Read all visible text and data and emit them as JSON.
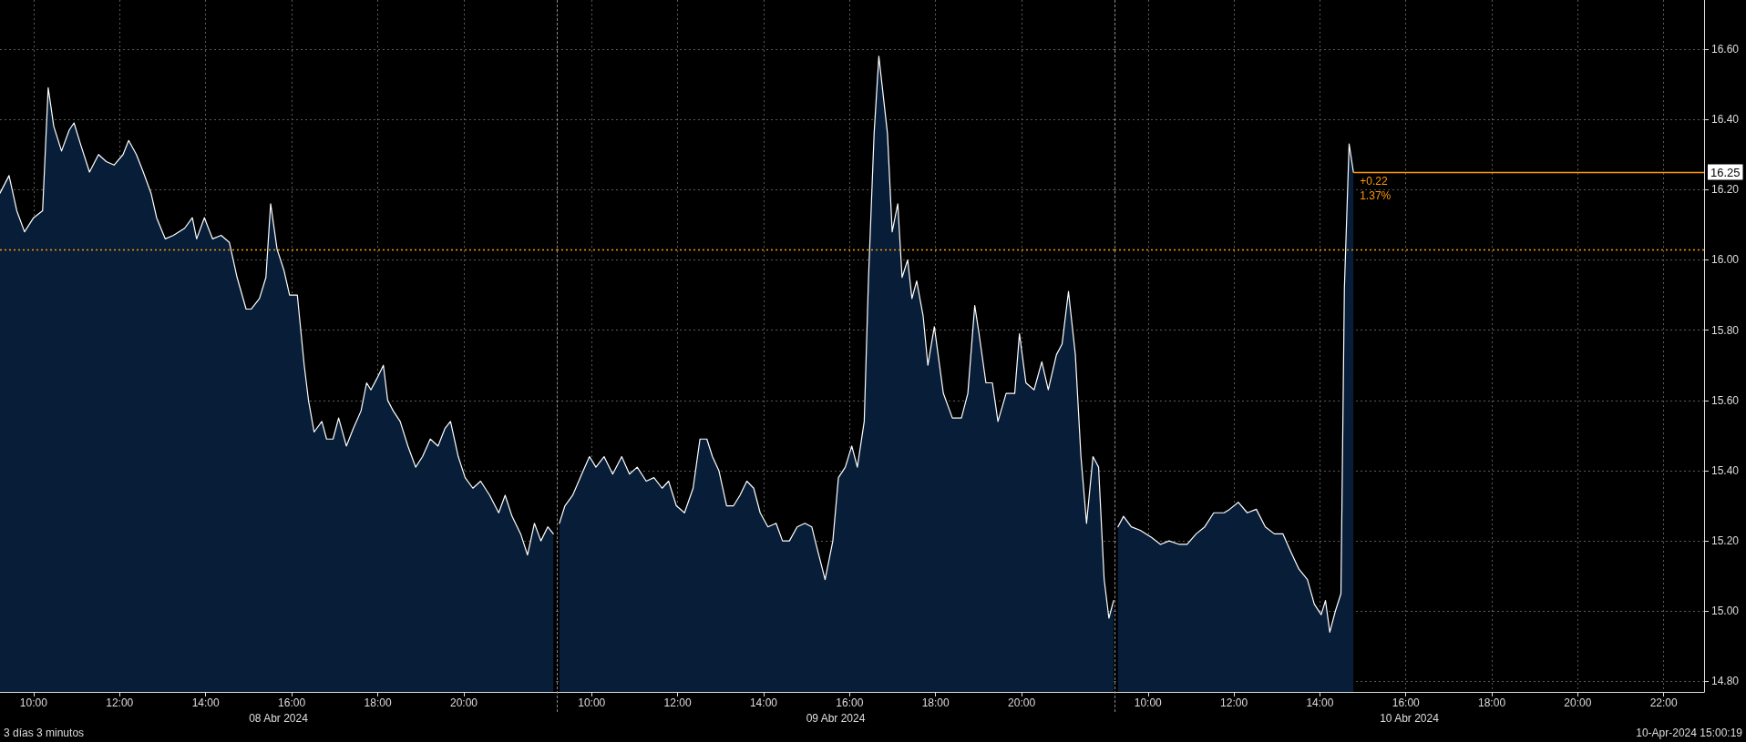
{
  "chart_data": [
    {
      "type": "area",
      "xlabel": "08 Abr 2024",
      "x": [
        9.22,
        9.43,
        9.61,
        9.79,
        10,
        10.21,
        10.34,
        10.47,
        10.65,
        10.83,
        10.94,
        11.09,
        11.3,
        11.51,
        11.69,
        11.87,
        12.08,
        12.21,
        12.39,
        12.55,
        12.73,
        12.86,
        13.06,
        13.25,
        13.51,
        13.69,
        13.79,
        13.97,
        14.16,
        14.36,
        14.55,
        14.73,
        14.94,
        15.06,
        15.25,
        15.4,
        15.51,
        15.66,
        15.82,
        15.95,
        16.13,
        16.29,
        16.39,
        16.52,
        16.7,
        16.81,
        16.96,
        17.09,
        17.27,
        17.43,
        17.61,
        17.74,
        17.84,
        17.97,
        18.13,
        18.23,
        18.36,
        18.52,
        18.7,
        18.88,
        19.04,
        19.22,
        19.4,
        19.56,
        19.69,
        19.87,
        20.03,
        20.21,
        20.39,
        20.6,
        20.81,
        20.96,
        21.12,
        21.32,
        21.48,
        21.64,
        21.79,
        21.95,
        22.08
      ],
      "series": [
        {
          "color": "#ffffff",
          "values": [
            16.19,
            16.24,
            16.14,
            16.08,
            16.12,
            16.14,
            16.49,
            16.38,
            16.31,
            16.37,
            16.39,
            16.33,
            16.25,
            16.3,
            16.28,
            16.27,
            16.3,
            16.34,
            16.3,
            16.25,
            16.19,
            16.12,
            16.06,
            16.07,
            16.09,
            16.12,
            16.06,
            16.12,
            16.06,
            16.07,
            16.05,
            15.95,
            15.86,
            15.86,
            15.89,
            15.95,
            16.16,
            16.03,
            15.97,
            15.9,
            15.9,
            15.7,
            15.6,
            15.51,
            15.54,
            15.49,
            15.49,
            15.55,
            15.47,
            15.52,
            15.57,
            15.65,
            15.63,
            15.66,
            15.7,
            15.6,
            15.57,
            15.54,
            15.47,
            15.41,
            15.44,
            15.49,
            15.47,
            15.52,
            15.54,
            15.44,
            15.38,
            15.35,
            15.37,
            15.33,
            15.28,
            15.33,
            15.27,
            15.22,
            15.16,
            15.25,
            15.2,
            15.24,
            15.22
          ]
        }
      ],
      "xlim": [
        9.22,
        22.16
      ],
      "xticks": [
        {
          "value": 10,
          "label": "10:00"
        },
        {
          "value": 12,
          "label": "12:00"
        },
        {
          "value": 14,
          "label": "14:00"
        },
        {
          "value": 16,
          "label": "16:00"
        },
        {
          "value": 18,
          "label": "18:00"
        },
        {
          "value": 20,
          "label": "20:00"
        }
      ],
      "ylim": [
        14.77,
        16.74
      ],
      "yticks": [
        14.8,
        15,
        15.2,
        15.4,
        15.6,
        15.8,
        16,
        16.2,
        16.4,
        16.6
      ],
      "tick_labels": "x",
      "ref_lines": [
        {
          "axis": "y",
          "value": 16.03,
          "color": "#ff9900",
          "line_style": "dotted"
        }
      ],
      "annotations": [
        "3 días 3 minutos"
      ],
      "grid": true,
      "marker": "none",
      "line_style": "solid"
    },
    {
      "type": "area",
      "xlabel": "09 Abr 2024",
      "x": [
        9.25,
        9.38,
        9.56,
        9.77,
        9.95,
        10.1,
        10.29,
        10.49,
        10.7,
        10.88,
        11.06,
        11.27,
        11.45,
        11.64,
        11.79,
        11.97,
        12.16,
        12.36,
        12.52,
        12.68,
        12.81,
        12.96,
        13.14,
        13.3,
        13.45,
        13.61,
        13.77,
        13.92,
        14.1,
        14.29,
        14.44,
        14.6,
        14.78,
        14.96,
        15.12,
        15.22,
        15.43,
        15.61,
        15.74,
        15.9,
        16.05,
        16.18,
        16.34,
        16.44,
        16.57,
        16.68,
        16.78,
        16.88,
        16.99,
        17.12,
        17.22,
        17.35,
        17.45,
        17.56,
        17.71,
        17.82,
        17.97,
        18.18,
        18.39,
        18.6,
        18.75,
        18.91,
        19.01,
        19.17,
        19.32,
        19.45,
        19.64,
        19.84,
        19.95,
        20.1,
        20.29,
        20.47,
        20.62,
        20.81,
        20.94,
        21.09,
        21.25,
        21.38,
        21.51,
        21.66,
        21.79,
        21.92,
        22.03,
        22.14
      ],
      "series": [
        {
          "color": "#ffffff",
          "values": [
            15.25,
            15.3,
            15.33,
            15.39,
            15.44,
            15.41,
            15.44,
            15.39,
            15.44,
            15.39,
            15.41,
            15.37,
            15.38,
            15.35,
            15.37,
            15.3,
            15.28,
            15.35,
            15.49,
            15.49,
            15.44,
            15.4,
            15.3,
            15.3,
            15.33,
            15.37,
            15.35,
            15.28,
            15.24,
            15.25,
            15.2,
            15.2,
            15.24,
            15.25,
            15.24,
            15.19,
            15.09,
            15.2,
            15.38,
            15.41,
            15.47,
            15.41,
            15.54,
            15.95,
            16.36,
            16.58,
            16.47,
            16.36,
            16.08,
            16.16,
            15.95,
            16,
            15.89,
            15.94,
            15.84,
            15.7,
            15.81,
            15.62,
            15.55,
            15.55,
            15.62,
            15.87,
            15.79,
            15.65,
            15.65,
            15.54,
            15.62,
            15.62,
            15.79,
            15.65,
            15.63,
            15.71,
            15.63,
            15.73,
            15.76,
            15.91,
            15.73,
            15.44,
            15.25,
            15.44,
            15.41,
            15.09,
            14.98,
            15.03
          ]
        }
      ],
      "xlim": [
        9.19,
        22.16
      ],
      "xticks": [
        {
          "value": 10,
          "label": "10:00"
        },
        {
          "value": 12,
          "label": "12:00"
        },
        {
          "value": 14,
          "label": "14:00"
        },
        {
          "value": 16,
          "label": "16:00"
        },
        {
          "value": 18,
          "label": "18:00"
        },
        {
          "value": 20,
          "label": "20:00"
        }
      ],
      "ylim": [
        14.77,
        16.74
      ],
      "yticks": [
        14.8,
        15,
        15.2,
        15.4,
        15.6,
        15.8,
        16,
        16.2,
        16.4,
        16.6
      ],
      "tick_labels": "x",
      "ref_lines": [
        {
          "axis": "y",
          "value": 16.03,
          "color": "#ff9900",
          "line_style": "dotted"
        }
      ],
      "grid": true,
      "marker": "none",
      "line_style": "solid"
    },
    {
      "type": "area",
      "xlabel": "10 Abr 2024",
      "x": [
        9.3,
        9.43,
        9.61,
        9.82,
        10.08,
        10.29,
        10.49,
        10.73,
        10.91,
        11.12,
        11.32,
        11.53,
        11.77,
        11.9,
        12.1,
        12.31,
        12.52,
        12.73,
        12.94,
        13.14,
        13.32,
        13.51,
        13.71,
        13.87,
        14.03,
        14.13,
        14.23,
        14.36,
        14.49,
        14.57,
        14.68,
        14.78
      ],
      "series": [
        {
          "color": "#ffffff",
          "values": [
            15.24,
            15.27,
            15.24,
            15.23,
            15.21,
            15.19,
            15.2,
            15.19,
            15.19,
            15.22,
            15.24,
            15.28,
            15.28,
            15.29,
            15.31,
            15.28,
            15.29,
            15.24,
            15.22,
            15.22,
            15.17,
            15.12,
            15.09,
            15.02,
            14.99,
            15.03,
            14.94,
            15,
            15.05,
            15.92,
            16.33,
            16.25
          ]
        }
      ],
      "xlim": [
        9.22,
        22.94
      ],
      "xticks": [
        {
          "value": 10,
          "label": "10:00"
        },
        {
          "value": 12,
          "label": "12:00"
        },
        {
          "value": 14,
          "label": "14:00"
        },
        {
          "value": 16,
          "label": "16:00"
        },
        {
          "value": 18,
          "label": "18:00"
        },
        {
          "value": 20,
          "label": "20:00"
        },
        {
          "value": 22,
          "label": "22:00"
        }
      ],
      "ylim": [
        14.77,
        16.74
      ],
      "yticks": [
        {
          "value": 14.8,
          "label": "14.80"
        },
        {
          "value": 15,
          "label": "15.00"
        },
        {
          "value": 15.2,
          "label": "15.20"
        },
        {
          "value": 15.4,
          "label": "15.40"
        },
        {
          "value": 15.6,
          "label": "15.60"
        },
        {
          "value": 15.8,
          "label": "15.80"
        },
        {
          "value": 16,
          "label": "16.00"
        },
        {
          "value": 16.2,
          "label": "16.20"
        },
        {
          "value": 16.4,
          "label": "16.40"
        },
        {
          "value": 16.6,
          "label": "16.60"
        }
      ],
      "ref_lines": [
        {
          "axis": "y",
          "value": 16.03,
          "color": "#ff9900",
          "line_style": "dotted"
        },
        {
          "axis": "y",
          "value": 16.25,
          "label": "16.25",
          "color": "#ff9900",
          "line_style": "solid"
        }
      ],
      "annotations": [
        {
          "text": "+0.22",
          "x": 14.78,
          "y": 16.25
        },
        {
          "text": "1.37%",
          "x": 14.78,
          "y": 16.25
        },
        "10-Apr-2024 15:00:19"
      ],
      "grid": true,
      "marker": "none",
      "line_style": "solid"
    }
  ]
}
